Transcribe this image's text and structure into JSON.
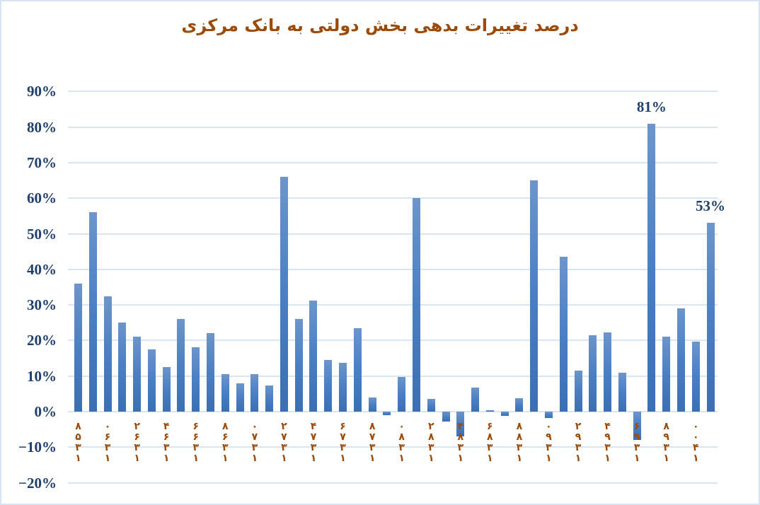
{
  "chart_data": {
    "type": "bar",
    "title": "درصد تغییرات بدهی بخش دولتی به بانک مرکزی",
    "xlabel": "",
    "ylabel": "",
    "ylim": [
      -20,
      90
    ],
    "yticks": [
      90,
      80,
      70,
      60,
      50,
      40,
      30,
      20,
      10,
      0,
      -10,
      -20
    ],
    "ytick_labels": [
      "90%",
      "80%",
      "70%",
      "60%",
      "50%",
      "40%",
      "30%",
      "20%",
      "10%",
      "0%",
      "−10%",
      "−20%"
    ],
    "grid": true,
    "legend": null,
    "categories": [
      "۱۳۵۸",
      "۱۳۵۹",
      "۱۳۶۰",
      "۱۳۶۱",
      "۱۳۶۲",
      "۱۳۶۳",
      "۱۳۶۴",
      "۱۳۶۵",
      "۱۳۶۶",
      "۱۳۶۷",
      "۱۳۶۸",
      "۱۳۶۹",
      "۱۳۷۰",
      "۱۳۷۱",
      "۱۳۷۲",
      "۱۳۷۳",
      "۱۳۷۴",
      "۱۳۷۵",
      "۱۳۷۶",
      "۱۳۷۷",
      "۱۳۷۸",
      "۱۳۷۹",
      "۱۳۸۰",
      "۱۳۸۱",
      "۱۳۸۲",
      "۱۳۸۳",
      "۱۳۸۴",
      "۱۳۸۵",
      "۱۳۸۶",
      "۱۳۸۷",
      "۱۳۸۸",
      "۱۳۸۹",
      "۱۳۹۰",
      "۱۳۹۱",
      "۱۳۹۲",
      "۱۳۹۳",
      "۱۳۹۴",
      "۱۳۹۵",
      "۱۳۹۶",
      "۱۳۹۷",
      "۱۳۹۸",
      "۱۳۹۹",
      "۱۴۰۰",
      "۱۴۰۱"
    ],
    "shown_tick_labels": [
      "۱۳۵۸",
      "۱۳۶۰",
      "۱۳۶۲",
      "۱۳۶۴",
      "۱۳۶۶",
      "۱۳۶۸",
      "۱۳۷۰",
      "۱۳۷۲",
      "۱۳۷۴",
      "۱۳۷۶",
      "۱۳۷۸",
      "۱۳۸۰",
      "۱۳۸۲",
      "۱۳۸۴",
      "۱۳۸۶",
      "۱۳۸۸",
      "۱۳۹۰",
      "۱۳۹۲",
      "۱۳۹۴",
      "۱۳۹۶",
      "۱۳۹۸",
      "۱۴۰۰"
    ],
    "values": [
      36,
      56,
      32.5,
      25,
      21,
      17.5,
      12.5,
      26,
      18,
      22,
      10.5,
      8,
      10.5,
      7.3,
      66,
      26,
      31.3,
      14.5,
      13.8,
      23.5,
      4,
      -1,
      9.7,
      60,
      3.5,
      -2.7,
      -7,
      6.7,
      0.3,
      -1.2,
      3.7,
      65,
      -1.7,
      43.6,
      11.5,
      21.5,
      22.2,
      11,
      -8,
      81,
      21,
      29,
      19.6,
      53
    ],
    "annotations": [
      {
        "category": "۱۳۹۷",
        "text": "81%"
      },
      {
        "category": "۱۴۰۱",
        "text": "53%"
      }
    ],
    "colors": {
      "bar": "#4a7fc4",
      "title": "#9c4a07",
      "axis_text": "#1f3f6e",
      "grid": "#d9e5f2",
      "xlabel": "#9c4a07"
    }
  }
}
